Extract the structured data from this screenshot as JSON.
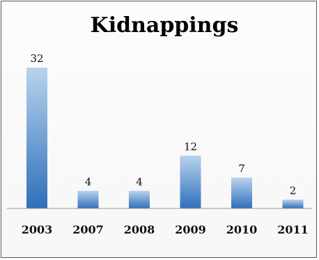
{
  "chart_data": {
    "type": "bar",
    "title": "Kidnappings",
    "xlabel": "",
    "ylabel": "",
    "categories": [
      "2003",
      "2007",
      "2008",
      "2009",
      "2010",
      "2011"
    ],
    "values": [
      32,
      4,
      4,
      12,
      7,
      2
    ],
    "data_labels": [
      "32",
      "4",
      "4",
      "12",
      "7",
      "2"
    ],
    "ylim": [
      0,
      32
    ],
    "grid": false,
    "legend": "none",
    "colors": {
      "bar_top": "#b9d3ee",
      "bar_bottom": "#2f6fba",
      "axis": "#999999"
    }
  }
}
